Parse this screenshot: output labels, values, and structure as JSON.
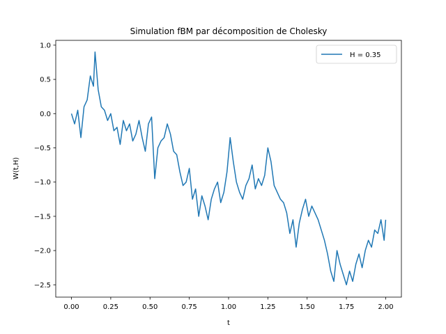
{
  "chart_data": {
    "type": "line",
    "title": "Simulation fBM par décomposition de Cholesky",
    "xlabel": "t",
    "ylabel": "W(t,H)",
    "xlim": [
      -0.1,
      2.1
    ],
    "ylim": [
      -2.68,
      1.07
    ],
    "xticks": [
      0.0,
      0.25,
      0.5,
      0.75,
      1.0,
      1.25,
      1.5,
      1.75,
      2.0
    ],
    "xtick_labels": [
      "0.00",
      "0.25",
      "0.50",
      "0.75",
      "1.00",
      "1.25",
      "1.50",
      "1.75",
      "2.00"
    ],
    "yticks": [
      1.0,
      0.5,
      0.0,
      -0.5,
      -1.0,
      -1.5,
      -2.0,
      -2.5
    ],
    "ytick_labels": [
      "1.0",
      "0.5",
      "0.0",
      "−0.5",
      "−1.0",
      "−1.5",
      "−2.0",
      "−2.5"
    ],
    "grid": false,
    "legend_position": "top-right",
    "series": [
      {
        "name": "H = 0.35",
        "color": "#1f77b4",
        "x": [
          0.0,
          0.02,
          0.04,
          0.06,
          0.08,
          0.1,
          0.12,
          0.14,
          0.15,
          0.17,
          0.19,
          0.21,
          0.23,
          0.25,
          0.27,
          0.29,
          0.31,
          0.33,
          0.35,
          0.37,
          0.39,
          0.41,
          0.43,
          0.45,
          0.47,
          0.49,
          0.51,
          0.53,
          0.55,
          0.57,
          0.59,
          0.61,
          0.63,
          0.65,
          0.67,
          0.69,
          0.71,
          0.73,
          0.75,
          0.77,
          0.79,
          0.81,
          0.83,
          0.85,
          0.87,
          0.89,
          0.91,
          0.93,
          0.95,
          0.97,
          0.99,
          1.01,
          1.03,
          1.05,
          1.07,
          1.09,
          1.11,
          1.13,
          1.15,
          1.17,
          1.19,
          1.21,
          1.23,
          1.25,
          1.27,
          1.29,
          1.31,
          1.33,
          1.35,
          1.37,
          1.39,
          1.41,
          1.43,
          1.45,
          1.47,
          1.49,
          1.51,
          1.53,
          1.55,
          1.57,
          1.59,
          1.61,
          1.63,
          1.65,
          1.67,
          1.69,
          1.71,
          1.73,
          1.75,
          1.77,
          1.79,
          1.81,
          1.83,
          1.85,
          1.87,
          1.89,
          1.91,
          1.93,
          1.95,
          1.97,
          1.99,
          2.0
        ],
        "y": [
          0.0,
          -0.15,
          0.05,
          -0.35,
          0.1,
          0.2,
          0.55,
          0.4,
          0.9,
          0.35,
          0.1,
          0.05,
          -0.1,
          0.0,
          -0.25,
          -0.2,
          -0.45,
          -0.1,
          -0.25,
          -0.15,
          -0.4,
          -0.3,
          -0.1,
          -0.35,
          -0.55,
          -0.15,
          -0.05,
          -0.95,
          -0.5,
          -0.4,
          -0.35,
          -0.15,
          -0.3,
          -0.55,
          -0.6,
          -0.85,
          -1.05,
          -1.0,
          -0.8,
          -1.25,
          -1.1,
          -1.5,
          -1.2,
          -1.35,
          -1.55,
          -1.25,
          -1.1,
          -1.0,
          -1.3,
          -1.15,
          -0.85,
          -0.35,
          -0.7,
          -1.0,
          -1.15,
          -1.25,
          -1.05,
          -0.95,
          -0.75,
          -1.1,
          -0.95,
          -1.05,
          -0.9,
          -0.5,
          -0.7,
          -1.05,
          -1.15,
          -1.25,
          -1.3,
          -1.45,
          -1.75,
          -1.55,
          -1.95,
          -1.6,
          -1.4,
          -1.25,
          -1.5,
          -1.35,
          -1.45,
          -1.55,
          -1.7,
          -1.85,
          -2.05,
          -2.3,
          -2.45,
          -2.0,
          -2.2,
          -2.35,
          -2.5,
          -2.3,
          -2.45,
          -2.2,
          -2.05,
          -2.25,
          -2.0,
          -1.85,
          -1.95,
          -1.7,
          -1.75,
          -1.55,
          -1.85,
          -1.55
        ]
      }
    ]
  }
}
